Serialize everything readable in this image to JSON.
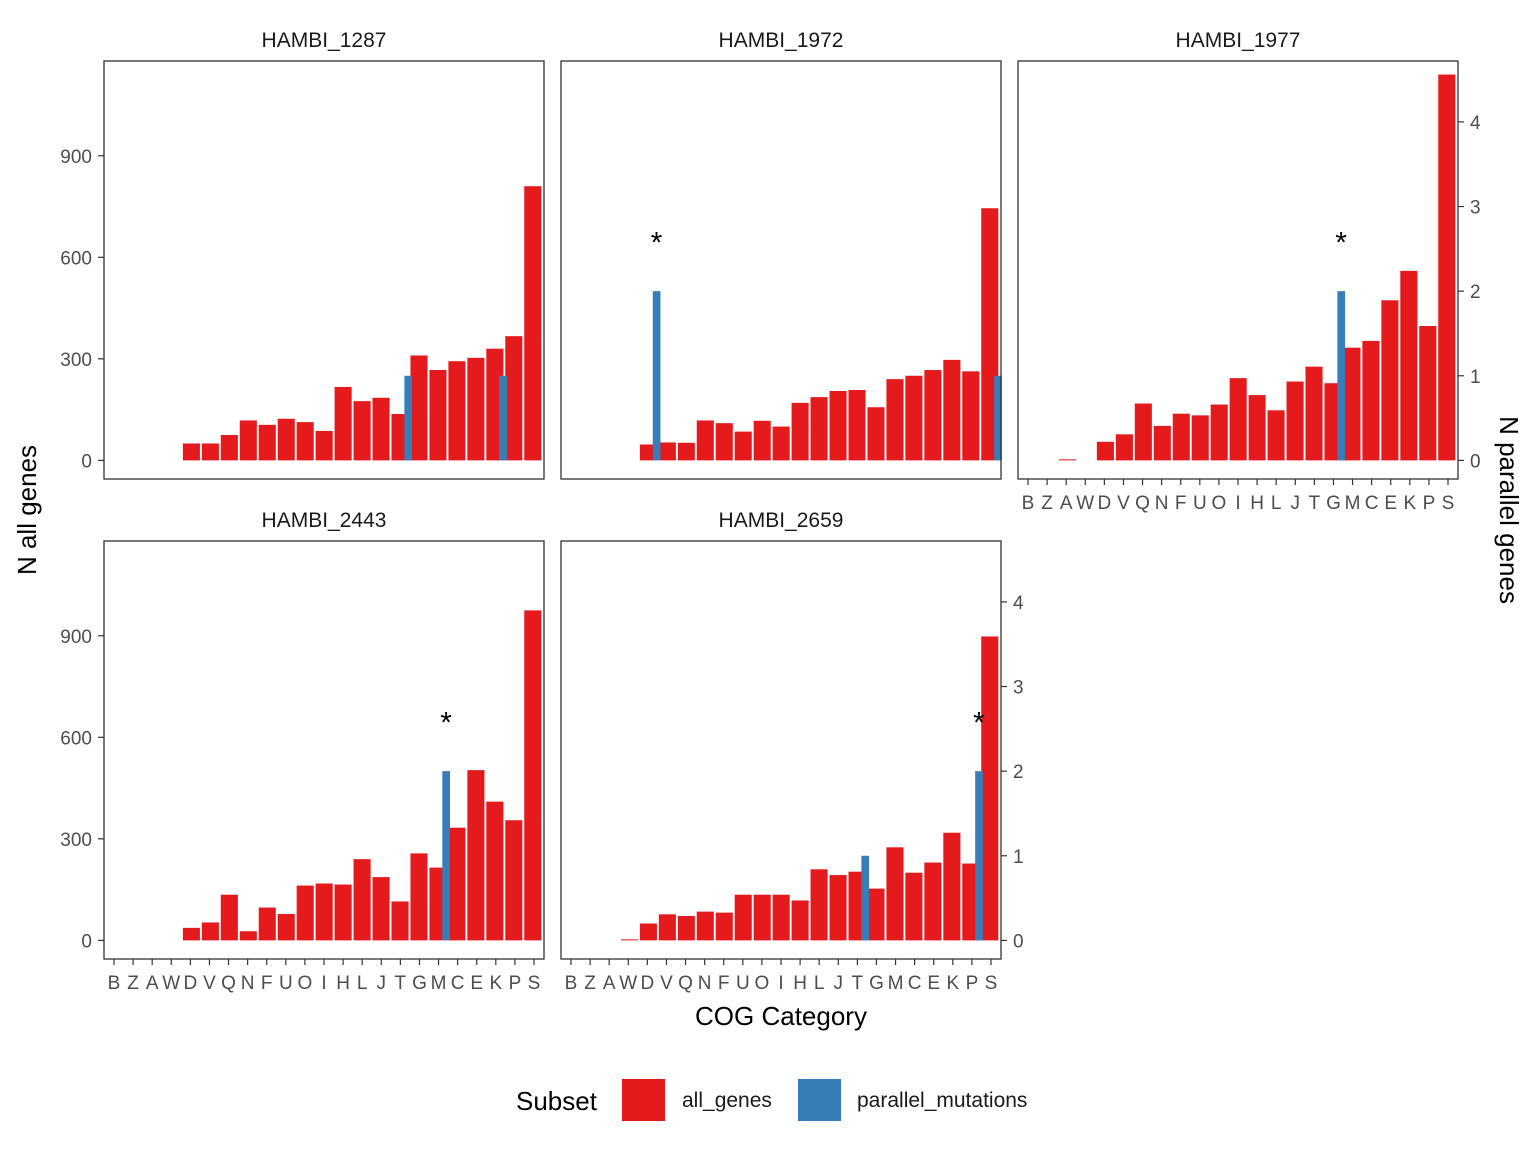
{
  "chart_data": {
    "type": "bar",
    "xlabel": "COG Category",
    "ylabel_left": "N all genes",
    "ylabel_right": "N parallel genes",
    "categories": [
      "B",
      "Z",
      "A",
      "W",
      "D",
      "V",
      "Q",
      "N",
      "F",
      "U",
      "O",
      "I",
      "H",
      "L",
      "J",
      "T",
      "G",
      "M",
      "C",
      "E",
      "K",
      "P",
      "S"
    ],
    "left_axis": {
      "ticks": [
        0,
        300,
        600,
        900
      ],
      "lim": [
        -55,
        1180
      ]
    },
    "right_axis": {
      "ticks": [
        0,
        1,
        2,
        3,
        4
      ],
      "lim": [
        -0.22,
        4.72
      ]
    },
    "significance_marker": "*",
    "legend": {
      "title": "Subset",
      "items": [
        {
          "label": "all_genes",
          "color": "#E41A1C"
        },
        {
          "label": "parallel_mutations",
          "color": "#377EB8"
        }
      ]
    },
    "panels": [
      {
        "title": "HAMBI_1287",
        "all_genes": {
          "D": 50,
          "V": 50,
          "Q": 75,
          "N": 118,
          "F": 105,
          "U": 123,
          "O": 113,
          "I": 87,
          "H": 217,
          "L": 175,
          "J": 185,
          "T": 137,
          "M": 310,
          "C": 267,
          "E": 293,
          "K": 303,
          "P": 330,
          "S": 367,
          "S2": 810
        },
        "parallel": {
          "T": 1,
          "K": 1
        },
        "significant": []
      },
      {
        "title": "HAMBI_1972",
        "all_genes": {
          "Q": 47,
          "N": 53,
          "F": 52,
          "U": 118,
          "O": 110,
          "I": 85,
          "H": 117,
          "L": 100,
          "J": 170,
          "T": 187,
          "G": 205,
          "M": 208,
          "C": 157,
          "E": 240,
          "K": 250,
          "P": 267,
          "S": 297,
          "S2": 263,
          "S3": 745
        },
        "parallel": {
          "Q": 2,
          "S": 1
        },
        "significant": [
          "Q"
        ]
      },
      {
        "title": "HAMBI_1977",
        "all_genes": {
          "A": 3,
          "D": 55,
          "V": 77,
          "Q": 168,
          "N": 102,
          "F": 138,
          "U": 133,
          "O": 165,
          "I": 243,
          "H": 193,
          "L": 148,
          "J": 233,
          "T": 277,
          "G": 228,
          "M": 333,
          "C": 353,
          "E": 473,
          "K": 560,
          "P": 397,
          "S": 1140
        },
        "parallel": {
          "M": 2
        },
        "significant": [
          "M"
        ]
      },
      {
        "title": "HAMBI_2443",
        "all_genes": {
          "D": 37,
          "V": 53,
          "Q": 135,
          "N": 27,
          "F": 97,
          "U": 78,
          "O": 162,
          "I": 168,
          "H": 165,
          "L": 240,
          "J": 187,
          "T": 115,
          "G": 257,
          "M": 215,
          "C": 333,
          "E": 503,
          "K": 410,
          "P": 355,
          "S": 975
        },
        "parallel": {
          "M": 2
        },
        "significant": [
          "M"
        ]
      },
      {
        "title": "HAMBI_2659",
        "all_genes": {
          "W": 3,
          "D": 50,
          "V": 77,
          "Q": 72,
          "N": 85,
          "F": 82,
          "U": 135,
          "O": 135,
          "I": 135,
          "H": 118,
          "L": 210,
          "J": 193,
          "T": 203,
          "G": 153,
          "M": 275,
          "C": 200,
          "E": 230,
          "K": 318,
          "P": 227,
          "S": 898
        },
        "parallel": {
          "T": 1,
          "P": 2
        },
        "significant": [
          "P"
        ]
      }
    ]
  }
}
